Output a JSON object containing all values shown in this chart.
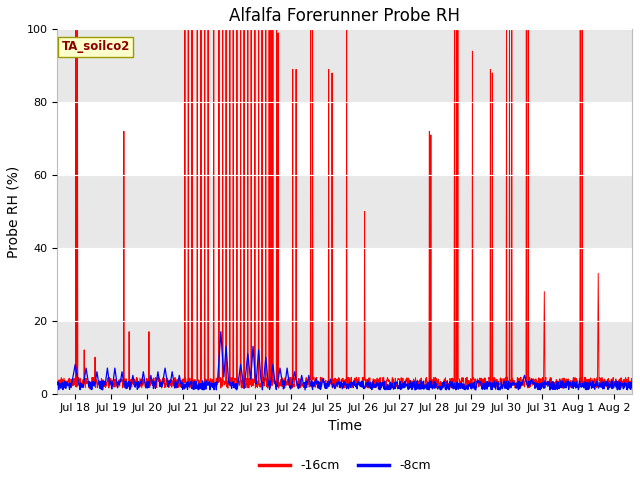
{
  "title": "Alfalfa Forerunner Probe RH",
  "xlabel": "Time",
  "ylabel": "Probe RH (%)",
  "ylim": [
    0,
    100
  ],
  "xlim_days": [
    17.5,
    33.5
  ],
  "xtick_days": [
    18,
    19,
    20,
    21,
    22,
    23,
    24,
    25,
    26,
    27,
    28,
    29,
    30,
    31,
    32,
    33
  ],
  "xtick_labels": [
    "Jul 18",
    "Jul 19",
    "Jul 20",
    "Jul 21",
    "Jul 22",
    "Jul 23",
    "Jul 24",
    "Jul 25",
    "Jul 26",
    "Jul 27",
    "Jul 28",
    "Jul 29",
    "Jul 30",
    "Jul 31",
    "Aug 1",
    "Aug 2"
  ],
  "annotation_text": "TA_soilco2",
  "legend_labels": [
    "-16cm",
    "-8cm"
  ],
  "line_color_16cm": "red",
  "line_color_8cm": "blue",
  "bg_gray": "#e8e8e8",
  "bg_white_band": "#ffffff",
  "title_fontsize": 12,
  "axis_label_fontsize": 10,
  "tick_fontsize": 8
}
